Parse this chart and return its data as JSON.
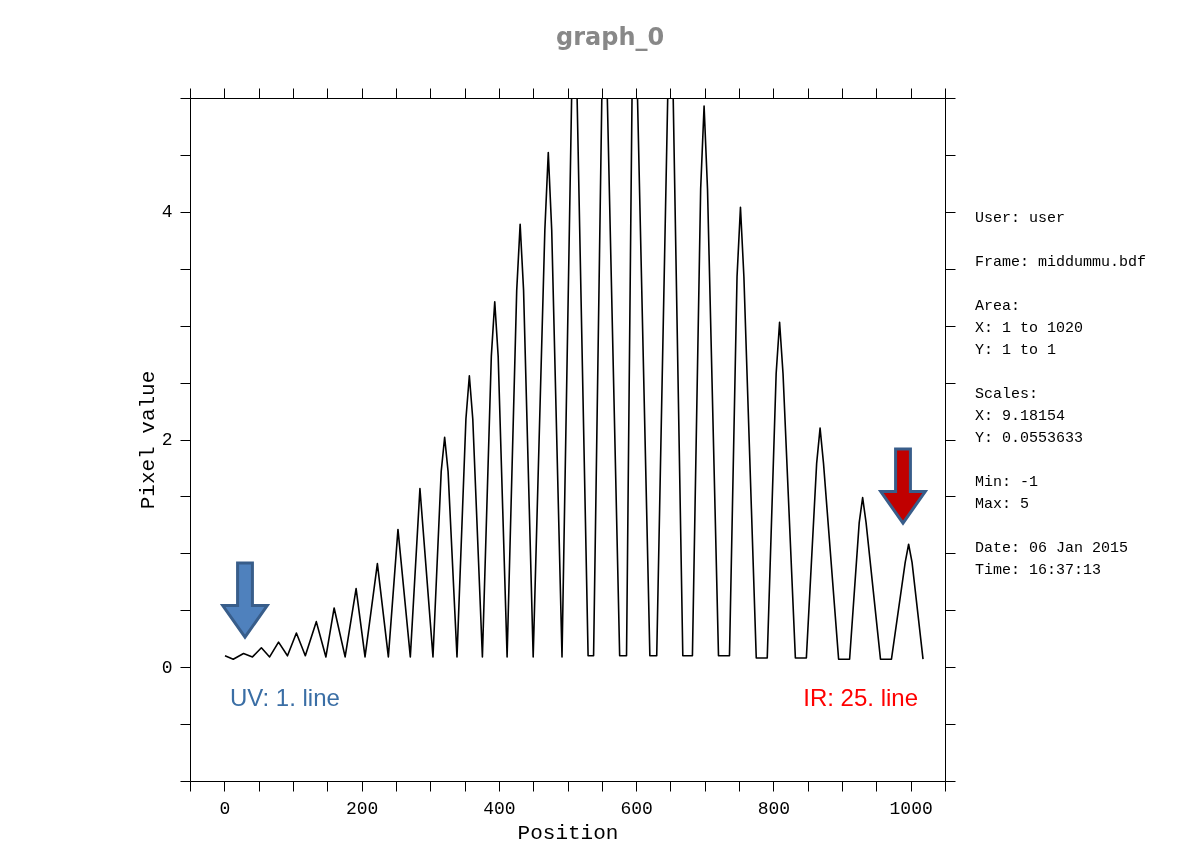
{
  "chart_data": {
    "type": "line",
    "title": "graph_0",
    "xlabel": "Position",
    "ylabel": "Pixel value",
    "x": [
      1,
      13,
      28,
      41,
      54,
      66,
      79,
      92,
      105,
      118,
      134,
      148,
      160,
      176,
      192,
      205,
      223,
      239,
      253,
      271,
      285,
      304,
      316,
      321,
      326,
      339,
      352,
      357,
      362,
      376,
      389,
      394,
      399,
      412,
      426,
      431,
      436,
      450,
      467,
      472,
      477,
      492,
      506,
      514,
      530,
      538,
      550,
      558,
      576,
      586,
      594,
      602,
      620,
      630,
      646,
      654,
      668,
      682,
      694,
      699,
      704,
      720,
      736,
      747,
      752,
      757,
      775,
      791,
      804,
      809,
      814,
      832,
      848,
      863,
      868,
      873,
      895,
      911,
      925,
      930,
      935,
      956,
      972,
      992,
      997,
      1002,
      1018
    ],
    "series": [
      {
        "color": "#000000",
        "values": [
          0.1,
          0.07,
          0.12,
          0.09,
          0.17,
          0.09,
          0.22,
          0.1,
          0.3,
          0.1,
          0.4,
          0.09,
          0.52,
          0.09,
          0.69,
          0.09,
          0.91,
          0.09,
          1.21,
          0.09,
          1.57,
          0.09,
          1.72,
          2.02,
          1.72,
          0.09,
          2.18,
          2.56,
          2.18,
          0.09,
          2.73,
          3.21,
          2.73,
          0.09,
          3.31,
          3.89,
          3.31,
          0.09,
          3.84,
          4.52,
          3.84,
          0.09,
          5,
          5,
          0.1,
          0.1,
          5,
          5,
          0.1,
          0.1,
          5,
          5,
          0.1,
          0.1,
          5,
          5,
          0.1,
          0.1,
          4.2,
          4.93,
          4.2,
          0.1,
          0.1,
          3.43,
          4.04,
          3.43,
          0.08,
          0.08,
          2.58,
          3.03,
          2.58,
          0.08,
          0.08,
          1.79,
          2.1,
          1.79,
          0.07,
          0.07,
          1.27,
          1.49,
          1.27,
          0.07,
          0.07,
          0.92,
          1.08,
          0.92,
          0.07
        ]
      }
    ],
    "xlim": [
      -50,
      1050
    ],
    "ylim": [
      -1,
      5
    ],
    "xticks": [
      {
        "value": -50,
        "label": null
      },
      0,
      {
        "value": 50,
        "label": null
      },
      {
        "value": 100,
        "label": null
      },
      {
        "value": 150,
        "label": null
      },
      200,
      {
        "value": 250,
        "label": null
      },
      {
        "value": 300,
        "label": null
      },
      {
        "value": 350,
        "label": null
      },
      400,
      {
        "value": 450,
        "label": null
      },
      {
        "value": 500,
        "label": null
      },
      {
        "value": 550,
        "label": null
      },
      600,
      {
        "value": 650,
        "label": null
      },
      {
        "value": 700,
        "label": null
      },
      {
        "value": 750,
        "label": null
      },
      800,
      {
        "value": 850,
        "label": null
      },
      {
        "value": 900,
        "label": null
      },
      {
        "value": 950,
        "label": null
      },
      1000,
      {
        "value": 1050,
        "label": null
      }
    ],
    "yticks": [
      {
        "value": -1,
        "label": null
      },
      {
        "value": -0.5,
        "label": null
      },
      0,
      {
        "value": 0.5,
        "label": null
      },
      {
        "value": 1,
        "label": null
      },
      {
        "value": 1.5,
        "label": null
      },
      2,
      {
        "value": 2.5,
        "label": null
      },
      {
        "value": 3,
        "label": null
      },
      {
        "value": 3.5,
        "label": null
      },
      4,
      {
        "value": 4.5,
        "label": null
      },
      {
        "value": 5,
        "label": null
      }
    ],
    "grid": false,
    "marker": "none",
    "line_style": "solid",
    "annotations": [
      "UV: 1. line",
      "IR: 25. line",
      "User: user",
      "Frame: middummu.bdf",
      "Area:\nX: 1 to 1020\nY: 1 to 1",
      "Scales:\nX: 9.18154\nY: 0.0553633",
      "Min: -1\nMax: 5",
      "Date: 06 Jan 2015\nTime: 16:37:13"
    ]
  }
}
